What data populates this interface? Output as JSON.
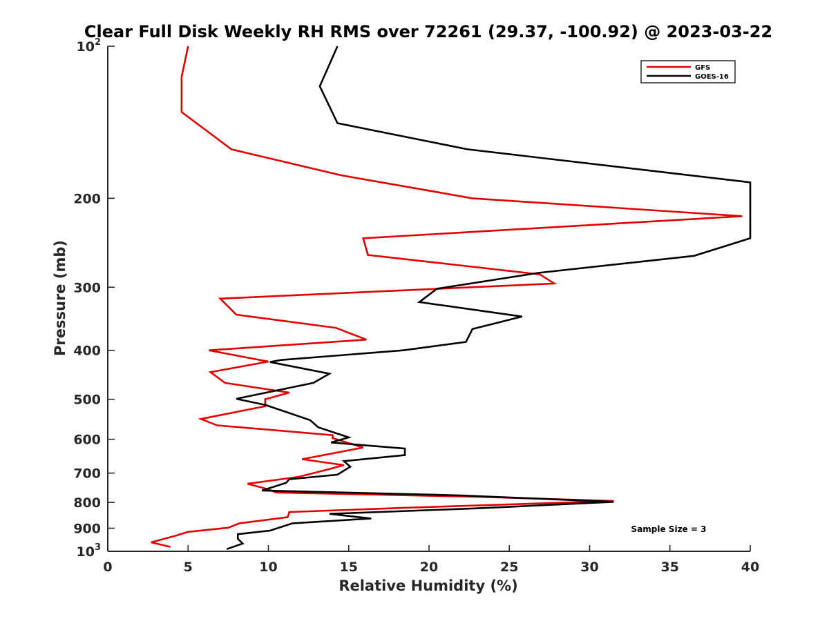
{
  "chart_data": {
    "type": "line",
    "title": "Clear Full Disk Weekly RH RMS over 72261 (29.37, -100.92) @ 2023-03-22",
    "xlabel": "Relative Humidity (%)",
    "ylabel": "Pressure (mb)",
    "xlim": [
      0,
      40
    ],
    "ylim": [
      100,
      1000
    ],
    "yscale": "log",
    "y_reversed": true,
    "grid": false,
    "legend_position": "top-right",
    "x_ticks": [
      "0",
      "5",
      "10",
      "15",
      "20",
      "25",
      "30",
      "35",
      "40"
    ],
    "y_ticks": [
      {
        "value": 100,
        "base": "10",
        "exp": "2"
      },
      {
        "value": 200,
        "label": "200"
      },
      {
        "value": 300,
        "label": "300"
      },
      {
        "value": 400,
        "label": "400"
      },
      {
        "value": 500,
        "label": "500"
      },
      {
        "value": 600,
        "label": "600"
      },
      {
        "value": 700,
        "label": "700"
      },
      {
        "value": 800,
        "label": "800"
      },
      {
        "value": 900,
        "label": "900"
      },
      {
        "value": 1000,
        "base": "10",
        "exp": "3"
      }
    ],
    "annotation": "Sample Size = 3",
    "series": [
      {
        "name": "GFS",
        "color": "#e00000",
        "points": [
          [
            5.0,
            100
          ],
          [
            4.6,
            115
          ],
          [
            4.6,
            135
          ],
          [
            7.7,
            160
          ],
          [
            14.5,
            180
          ],
          [
            22.7,
            200
          ],
          [
            39.5,
            217
          ],
          [
            15.9,
            240
          ],
          [
            16.2,
            259
          ],
          [
            26.9,
            283
          ],
          [
            27.8,
            295
          ],
          [
            7.0,
            316
          ],
          [
            8.0,
            340
          ],
          [
            14.2,
            361
          ],
          [
            16.1,
            381
          ],
          [
            6.3,
            400
          ],
          [
            10.0,
            421
          ],
          [
            6.4,
            442
          ],
          [
            7.3,
            464
          ],
          [
            11.3,
            485
          ],
          [
            9.8,
            500
          ],
          [
            9.8,
            516
          ],
          [
            5.8,
            547
          ],
          [
            6.8,
            563
          ],
          [
            14.0,
            589
          ],
          [
            14.0,
            597
          ],
          [
            15.9,
            623
          ],
          [
            12.1,
            657
          ],
          [
            14.7,
            675
          ],
          [
            13.6,
            690
          ],
          [
            11.9,
            712
          ],
          [
            8.7,
            735
          ],
          [
            10.0,
            754
          ],
          [
            10.5,
            765
          ],
          [
            23.0,
            780
          ],
          [
            31.5,
            795
          ],
          [
            18.5,
            820
          ],
          [
            11.3,
            836
          ],
          [
            11.2,
            856
          ],
          [
            8.2,
            880
          ],
          [
            7.5,
            898
          ],
          [
            5.0,
            915
          ],
          [
            4.3,
            930
          ],
          [
            2.7,
            960
          ],
          [
            3.9,
            980
          ]
        ]
      },
      {
        "name": "GOES-16",
        "color": "#000000",
        "points": [
          [
            14.3,
            100
          ],
          [
            13.2,
            120
          ],
          [
            14.3,
            142
          ],
          [
            22.4,
            160
          ],
          [
            40.0,
            186
          ],
          [
            40.0,
            240
          ],
          [
            36.5,
            260
          ],
          [
            26.8,
            281
          ],
          [
            20.5,
            302
          ],
          [
            19.4,
            321
          ],
          [
            25.8,
            343
          ],
          [
            22.7,
            363
          ],
          [
            22.3,
            385
          ],
          [
            18.4,
            400
          ],
          [
            10.8,
            418
          ],
          [
            10.1,
            422
          ],
          [
            13.8,
            445
          ],
          [
            12.8,
            464
          ],
          [
            8.0,
            499
          ],
          [
            9.8,
            513
          ],
          [
            12.6,
            550
          ],
          [
            13.1,
            568
          ],
          [
            15.0,
            595
          ],
          [
            13.9,
            609
          ],
          [
            18.5,
            626
          ],
          [
            18.5,
            645
          ],
          [
            14.7,
            663
          ],
          [
            15.1,
            680
          ],
          [
            14.3,
            705
          ],
          [
            11.3,
            720
          ],
          [
            11.1,
            732
          ],
          [
            9.6,
            758
          ],
          [
            22.0,
            775
          ],
          [
            31.5,
            798
          ],
          [
            23.0,
            822
          ],
          [
            13.8,
            843
          ],
          [
            16.4,
            861
          ],
          [
            11.5,
            880
          ],
          [
            10.1,
            910
          ],
          [
            8.1,
            925
          ],
          [
            8.1,
            945
          ],
          [
            8.4,
            965
          ],
          [
            7.4,
            990
          ]
        ]
      }
    ]
  }
}
